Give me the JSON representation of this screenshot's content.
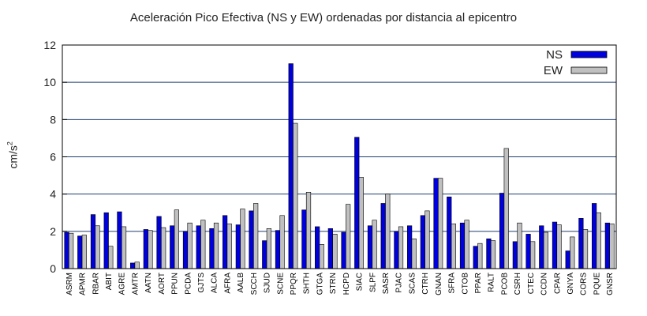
{
  "chart_data": {
    "type": "bar",
    "title": "Aceleración Pico Efectiva (NS y EW) ordenadas por distancia al epicentro",
    "ylabel_base": "cm/s",
    "ylabel_exp": "2",
    "xlabel": "",
    "ylim": [
      0,
      12
    ],
    "yticks": [
      "0",
      "2",
      "4",
      "6",
      "8",
      "10",
      "12"
    ],
    "grid": true,
    "legend_position": "top-right",
    "categories": [
      "ASRM",
      "APMR",
      "RBAR",
      "ABIT",
      "AGRE",
      "AMTR",
      "AATN",
      "AORT",
      "PPUN",
      "PCDA",
      "GJTS",
      "ALCA",
      "AFRA",
      "AALB",
      "SCCH",
      "SJUD",
      "SCNE",
      "PPQR",
      "SHTH",
      "GTGA",
      "STRN",
      "HCPD",
      "SIAC",
      "SLPF",
      "SASR",
      "PJAC",
      "SCAS",
      "CTRH",
      "GNAN",
      "SFRA",
      "CTOB",
      "PPAR",
      "RALT",
      "PCOB",
      "CSRH",
      "CTEC",
      "CCDN",
      "CPAR",
      "GNYA",
      "CORS",
      "PQUE",
      "GNSR"
    ],
    "series": [
      {
        "name": "NS",
        "color": "#0000dd",
        "values": [
          1.95,
          1.75,
          2.9,
          3.0,
          3.05,
          0.3,
          2.1,
          2.8,
          2.3,
          2.0,
          2.3,
          2.15,
          2.85,
          2.35,
          3.1,
          1.5,
          2.05,
          11.0,
          3.15,
          2.25,
          2.15,
          1.95,
          7.05,
          2.3,
          3.5,
          2.0,
          2.3,
          2.85,
          4.85,
          3.85,
          2.45,
          1.2,
          1.6,
          4.05,
          1.45,
          1.85,
          2.3,
          2.5,
          0.95,
          2.7,
          3.5,
          2.45
        ]
      },
      {
        "name": "EW",
        "color": "#c0c0c0",
        "values": [
          1.9,
          1.8,
          2.3,
          1.2,
          2.25,
          0.35,
          2.05,
          2.2,
          3.15,
          2.45,
          2.6,
          2.45,
          2.4,
          3.2,
          3.5,
          2.15,
          2.85,
          7.8,
          4.1,
          1.3,
          1.85,
          3.45,
          4.9,
          2.6,
          4.0,
          2.25,
          1.6,
          3.1,
          4.85,
          2.4,
          2.6,
          1.35,
          1.5,
          6.45,
          2.45,
          1.45,
          1.95,
          2.35,
          1.7,
          2.1,
          3.0,
          2.4
        ]
      }
    ]
  }
}
